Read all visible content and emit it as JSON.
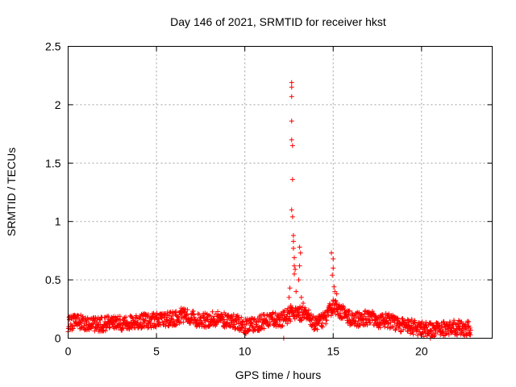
{
  "chart_data": {
    "type": "scatter",
    "title": "Day 146 of 2021, SRMTID for receiver hkst",
    "xlabel": "GPS time / hours",
    "ylabel": "SRMTID / TECUs",
    "xlim": [
      0,
      24
    ],
    "ylim": [
      0,
      2.5
    ],
    "xticks": [
      0,
      5,
      10,
      15,
      20
    ],
    "xtick_labels": [
      "0",
      "5",
      "10",
      "15",
      "20"
    ],
    "yticks": [
      0,
      0.5,
      1,
      1.5,
      2,
      2.5
    ],
    "ytick_labels": [
      "0",
      "0.5",
      "1",
      "1.5",
      "2",
      "2.5"
    ],
    "grid": true,
    "marker": "+",
    "series": [
      {
        "name": "SRMTID",
        "color": "#ff0000",
        "baseline": {
          "x": [
            0,
            0.5,
            1,
            1.5,
            2,
            2.5,
            3,
            3.5,
            4,
            4.5,
            5,
            5.5,
            6,
            6.5,
            7,
            7.5,
            8,
            8.5,
            9,
            9.5,
            10,
            10.5,
            11,
            11.5,
            12,
            12.5,
            13,
            13.5,
            14,
            14.5,
            15,
            15.5,
            16,
            16.5,
            17,
            17.5,
            18,
            18.5,
            19,
            19.5,
            20,
            20.5,
            21,
            21.5,
            22,
            22.5,
            22.8
          ],
          "y": [
            0.12,
            0.14,
            0.13,
            0.12,
            0.12,
            0.14,
            0.13,
            0.13,
            0.14,
            0.15,
            0.16,
            0.16,
            0.17,
            0.2,
            0.18,
            0.15,
            0.16,
            0.17,
            0.15,
            0.14,
            0.1,
            0.11,
            0.14,
            0.16,
            0.15,
            0.2,
            0.22,
            0.2,
            0.12,
            0.16,
            0.28,
            0.22,
            0.17,
            0.16,
            0.18,
            0.15,
            0.16,
            0.13,
            0.11,
            0.1,
            0.08,
            0.07,
            0.08,
            0.09,
            0.09,
            0.08,
            0.09
          ],
          "spread": 0.04,
          "density": 6
        },
        "spikes": [
          {
            "x": 12.2,
            "y": 0.0
          },
          {
            "x": 12.5,
            "y": 0.35
          },
          {
            "x": 12.55,
            "y": 0.43
          },
          {
            "x": 12.6,
            "y": 0.28
          },
          {
            "x": 12.65,
            "y": 2.19
          },
          {
            "x": 12.65,
            "y": 2.15
          },
          {
            "x": 12.65,
            "y": 2.07
          },
          {
            "x": 12.65,
            "y": 1.86
          },
          {
            "x": 12.65,
            "y": 1.7
          },
          {
            "x": 12.7,
            "y": 1.65
          },
          {
            "x": 12.7,
            "y": 1.36
          },
          {
            "x": 12.65,
            "y": 1.1
          },
          {
            "x": 12.7,
            "y": 1.04
          },
          {
            "x": 12.75,
            "y": 0.88
          },
          {
            "x": 12.75,
            "y": 0.83
          },
          {
            "x": 12.75,
            "y": 0.77
          },
          {
            "x": 12.8,
            "y": 0.69
          },
          {
            "x": 12.8,
            "y": 0.62
          },
          {
            "x": 12.85,
            "y": 0.59
          },
          {
            "x": 12.8,
            "y": 0.55
          },
          {
            "x": 12.9,
            "y": 0.4
          },
          {
            "x": 13.1,
            "y": 0.78
          },
          {
            "x": 13.15,
            "y": 0.73
          },
          {
            "x": 13.1,
            "y": 0.62
          },
          {
            "x": 13.05,
            "y": 0.5
          },
          {
            "x": 13.2,
            "y": 0.35
          },
          {
            "x": 13.3,
            "y": 0.3
          },
          {
            "x": 14.9,
            "y": 0.73
          },
          {
            "x": 15.0,
            "y": 0.68
          },
          {
            "x": 15.0,
            "y": 0.6
          },
          {
            "x": 14.95,
            "y": 0.54
          },
          {
            "x": 15.05,
            "y": 0.44
          },
          {
            "x": 15.1,
            "y": 0.4
          },
          {
            "x": 15.2,
            "y": 0.38
          },
          {
            "x": 20.5,
            "y": 0.0
          },
          {
            "x": 20.6,
            "y": 0.02
          }
        ]
      }
    ]
  }
}
